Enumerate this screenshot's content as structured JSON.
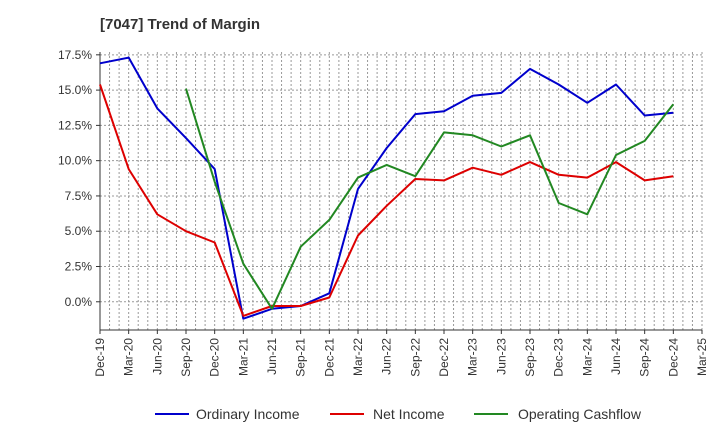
{
  "chart_data": {
    "type": "line",
    "title": "[7047]  Trend of Margin",
    "xlabel": "",
    "ylabel": "",
    "x": [
      "Dec-19",
      "Mar-20",
      "Jun-20",
      "Sep-20",
      "Dec-20",
      "Mar-21",
      "Jun-21",
      "Sep-21",
      "Dec-21",
      "Mar-22",
      "Jun-22",
      "Sep-22",
      "Dec-22",
      "Mar-23",
      "Jun-23",
      "Sep-23",
      "Dec-23",
      "Mar-24",
      "Jun-24",
      "Sep-24",
      "Dec-24",
      "Mar-25"
    ],
    "ylim": [
      -2.0,
      17.7
    ],
    "yticks": [
      0.0,
      2.5,
      5.0,
      7.5,
      10.0,
      12.5,
      15.0,
      17.5
    ],
    "ytick_labels": [
      "0.0%",
      "2.5%",
      "5.0%",
      "7.5%",
      "10.0%",
      "12.5%",
      "15.0%",
      "17.5%"
    ],
    "grid": true,
    "legend_position": "bottom",
    "series": [
      {
        "name": "Ordinary Income",
        "color": "#0000cc",
        "values": [
          16.9,
          17.3,
          13.7,
          11.6,
          9.4,
          -1.2,
          -0.5,
          -0.3,
          0.6,
          8.0,
          10.9,
          13.3,
          13.5,
          14.6,
          14.8,
          16.5,
          15.4,
          14.1,
          15.4,
          13.2,
          13.4,
          null
        ]
      },
      {
        "name": "Net Income",
        "color": "#dd0000",
        "values": [
          15.4,
          9.4,
          6.2,
          5.0,
          4.2,
          -1.0,
          -0.3,
          -0.3,
          0.3,
          4.7,
          6.8,
          8.7,
          8.6,
          9.5,
          9.0,
          9.9,
          9.0,
          8.8,
          9.9,
          8.6,
          8.9,
          null
        ]
      },
      {
        "name": "Operating Cashflow",
        "color": "#228822",
        "values": [
          null,
          null,
          null,
          15.1,
          8.5,
          2.7,
          -0.5,
          3.9,
          5.8,
          8.8,
          9.7,
          8.9,
          12.0,
          11.8,
          11.0,
          11.8,
          7.0,
          6.2,
          10.4,
          11.4,
          14.0,
          null
        ]
      }
    ]
  }
}
